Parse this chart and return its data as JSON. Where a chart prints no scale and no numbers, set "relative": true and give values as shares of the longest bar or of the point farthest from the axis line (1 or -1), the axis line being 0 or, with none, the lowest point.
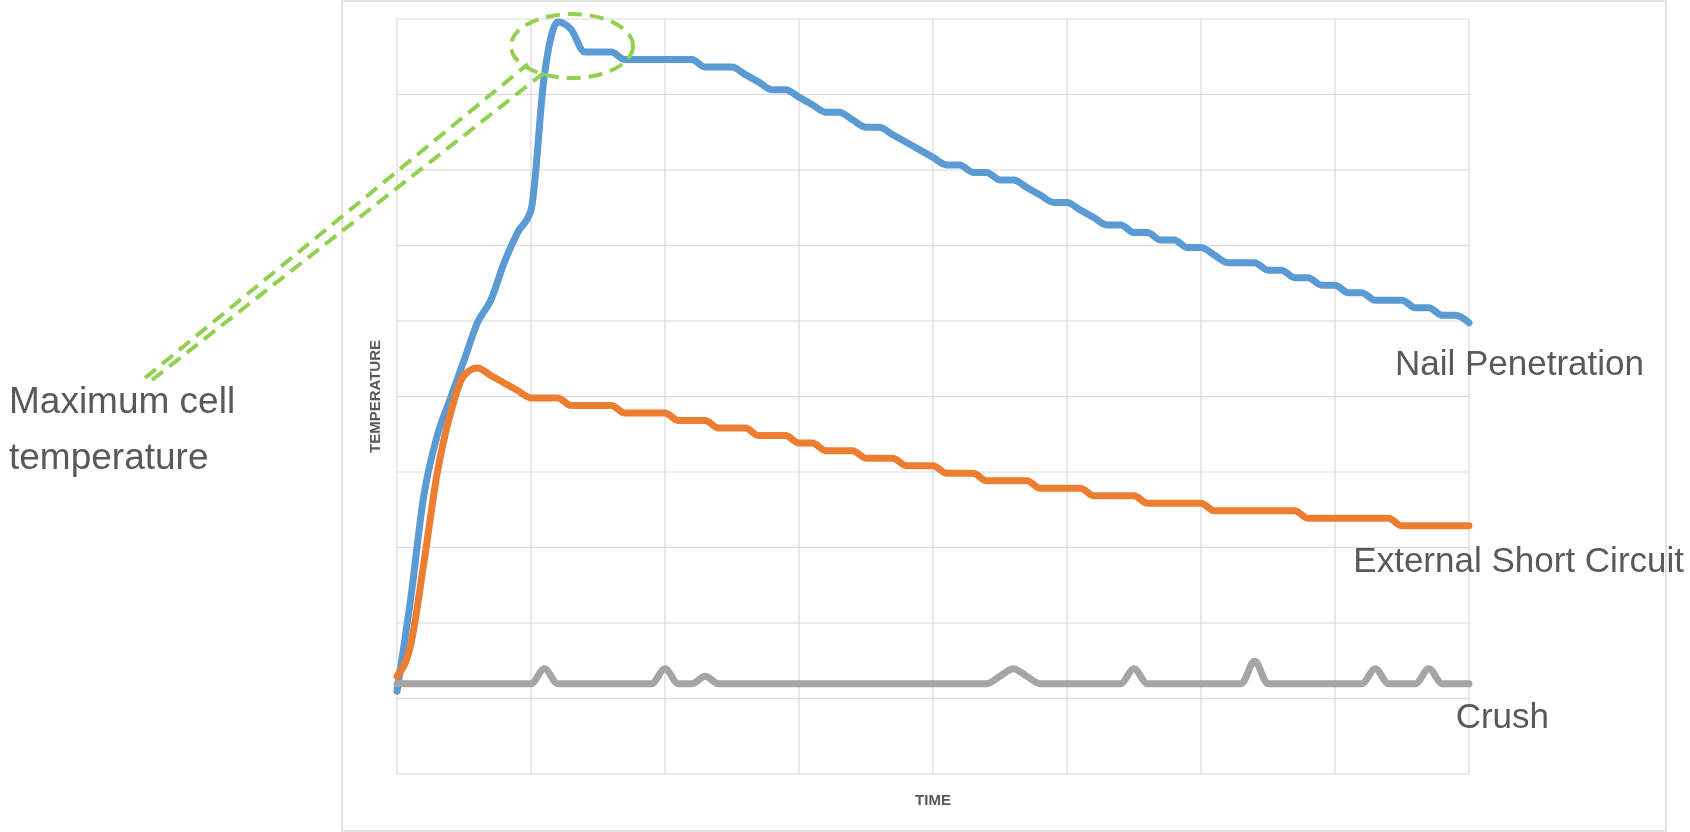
{
  "chart_data": {
    "type": "line",
    "relative": true,
    "xlabel": "TIME",
    "ylabel": "TEMPERATURE",
    "grid": true,
    "legend": false,
    "line_style": "solid",
    "categories": [
      null,
      null,
      null,
      null,
      null,
      null,
      null,
      null,
      null,
      null,
      null,
      null,
      null,
      null,
      null,
      null,
      null,
      null,
      null,
      null,
      null,
      null,
      null,
      null,
      null,
      null,
      null,
      null,
      null,
      null,
      null,
      null,
      null,
      null,
      null,
      null,
      null,
      null,
      null,
      null,
      null,
      null,
      null,
      null,
      null,
      null,
      null,
      null,
      null,
      null,
      null,
      null,
      null,
      null,
      null,
      null,
      null,
      null,
      null,
      null,
      null,
      null,
      null,
      null,
      null,
      null,
      null,
      null,
      null,
      null,
      null,
      null,
      null,
      null,
      null,
      null,
      null,
      null,
      null,
      null,
      null
    ],
    "series": [
      {
        "name": "Nail Penetration",
        "color": "#5b9bd5",
        "values": [
          0.11,
          0.23,
          0.37,
          0.45,
          0.5,
          0.55,
          0.6,
          0.63,
          0.68,
          0.72,
          0.75,
          0.93,
          1.0,
          0.99,
          0.96,
          0.96,
          0.96,
          0.95,
          0.95,
          0.95,
          0.95,
          0.95,
          0.95,
          0.94,
          0.94,
          0.94,
          0.93,
          0.92,
          0.91,
          0.91,
          0.9,
          0.89,
          0.88,
          0.88,
          0.87,
          0.86,
          0.86,
          0.85,
          0.84,
          0.83,
          0.82,
          0.81,
          0.81,
          0.8,
          0.8,
          0.79,
          0.79,
          0.78,
          0.77,
          0.76,
          0.76,
          0.75,
          0.74,
          0.73,
          0.73,
          0.72,
          0.72,
          0.71,
          0.71,
          0.7,
          0.7,
          0.69,
          0.68,
          0.68,
          0.68,
          0.67,
          0.67,
          0.66,
          0.66,
          0.65,
          0.65,
          0.64,
          0.64,
          0.63,
          0.63,
          0.63,
          0.62,
          0.62,
          0.61,
          0.61,
          0.6
        ]
      },
      {
        "name": "External Short Circuit",
        "color": "#ed7d31",
        "values": [
          0.13,
          0.17,
          0.28,
          0.4,
          0.48,
          0.53,
          0.54,
          0.53,
          0.52,
          0.51,
          0.5,
          0.5,
          0.5,
          0.49,
          0.49,
          0.49,
          0.49,
          0.48,
          0.48,
          0.48,
          0.48,
          0.47,
          0.47,
          0.47,
          0.46,
          0.46,
          0.46,
          0.45,
          0.45,
          0.45,
          0.44,
          0.44,
          0.43,
          0.43,
          0.43,
          0.42,
          0.42,
          0.42,
          0.41,
          0.41,
          0.41,
          0.4,
          0.4,
          0.4,
          0.39,
          0.39,
          0.39,
          0.39,
          0.38,
          0.38,
          0.38,
          0.38,
          0.37,
          0.37,
          0.37,
          0.37,
          0.36,
          0.36,
          0.36,
          0.36,
          0.36,
          0.35,
          0.35,
          0.35,
          0.35,
          0.35,
          0.35,
          0.35,
          0.34,
          0.34,
          0.34,
          0.34,
          0.34,
          0.34,
          0.34,
          0.33,
          0.33,
          0.33,
          0.33,
          0.33,
          0.33
        ]
      },
      {
        "name": "Crush",
        "color": "#a5a5a5",
        "values": [
          0.12,
          0.12,
          0.12,
          0.12,
          0.12,
          0.12,
          0.12,
          0.12,
          0.12,
          0.12,
          0.12,
          0.14,
          0.12,
          0.12,
          0.12,
          0.12,
          0.12,
          0.12,
          0.12,
          0.12,
          0.14,
          0.12,
          0.12,
          0.13,
          0.12,
          0.12,
          0.12,
          0.12,
          0.12,
          0.12,
          0.12,
          0.12,
          0.12,
          0.12,
          0.12,
          0.12,
          0.12,
          0.12,
          0.12,
          0.12,
          0.12,
          0.12,
          0.12,
          0.12,
          0.12,
          0.13,
          0.14,
          0.13,
          0.12,
          0.12,
          0.12,
          0.12,
          0.12,
          0.12,
          0.12,
          0.14,
          0.12,
          0.12,
          0.12,
          0.12,
          0.12,
          0.12,
          0.12,
          0.12,
          0.15,
          0.12,
          0.12,
          0.12,
          0.12,
          0.12,
          0.12,
          0.12,
          0.12,
          0.14,
          0.12,
          0.12,
          0.12,
          0.14,
          0.12,
          0.12,
          0.12
        ]
      }
    ],
    "annotations": [
      "Maximum cell temperature"
    ]
  }
}
